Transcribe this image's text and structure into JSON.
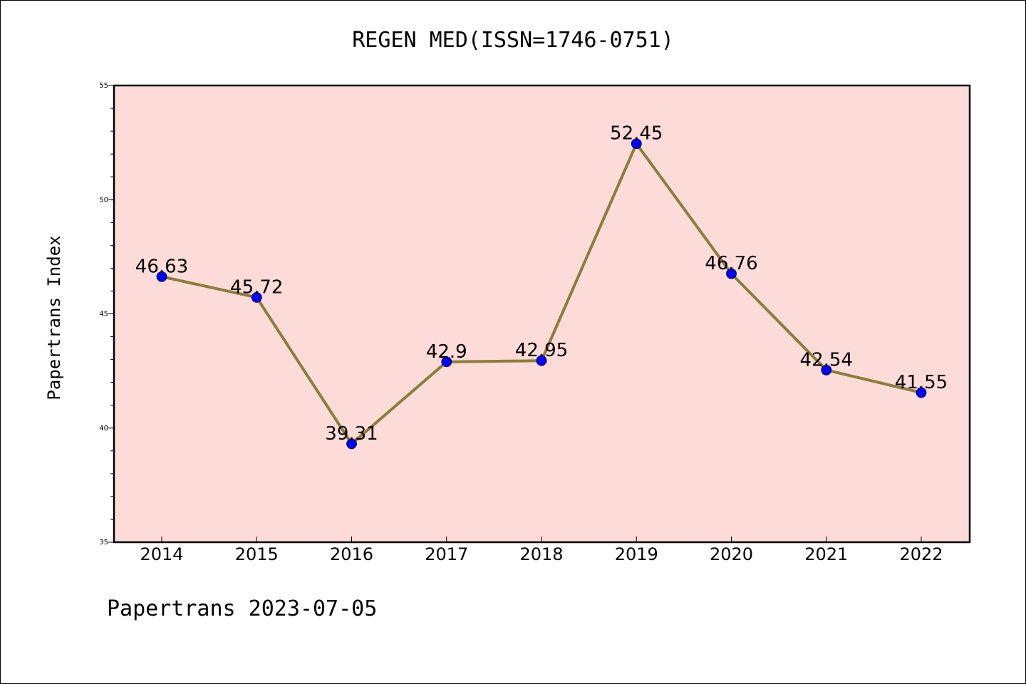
{
  "chart_data": {
    "type": "line",
    "title": "REGEN MED(ISSN=1746-0751)",
    "ylabel": "Papertrans Index",
    "xlabel": "",
    "footer": "Papertrans 2023-07-05",
    "categories": [
      "2014",
      "2015",
      "2016",
      "2017",
      "2018",
      "2019",
      "2020",
      "2021",
      "2022"
    ],
    "series": [
      {
        "values": [
          46.63,
          45.72,
          39.31,
          42.9,
          42.95,
          52.45,
          46.76,
          42.54,
          41.55
        ],
        "labels": [
          "46.63",
          "45.72",
          "39.31",
          "42.9",
          "42.95",
          "52.45",
          "46.76",
          "42.54",
          "41.55"
        ]
      }
    ],
    "ylim": [
      35,
      55
    ],
    "yticks": [
      "35",
      "40",
      "45",
      "50",
      "55"
    ],
    "grid": false,
    "colors": {
      "plot_background": "#fddbd8",
      "line": "#8b7d3a",
      "marker": "#0000ff"
    }
  }
}
